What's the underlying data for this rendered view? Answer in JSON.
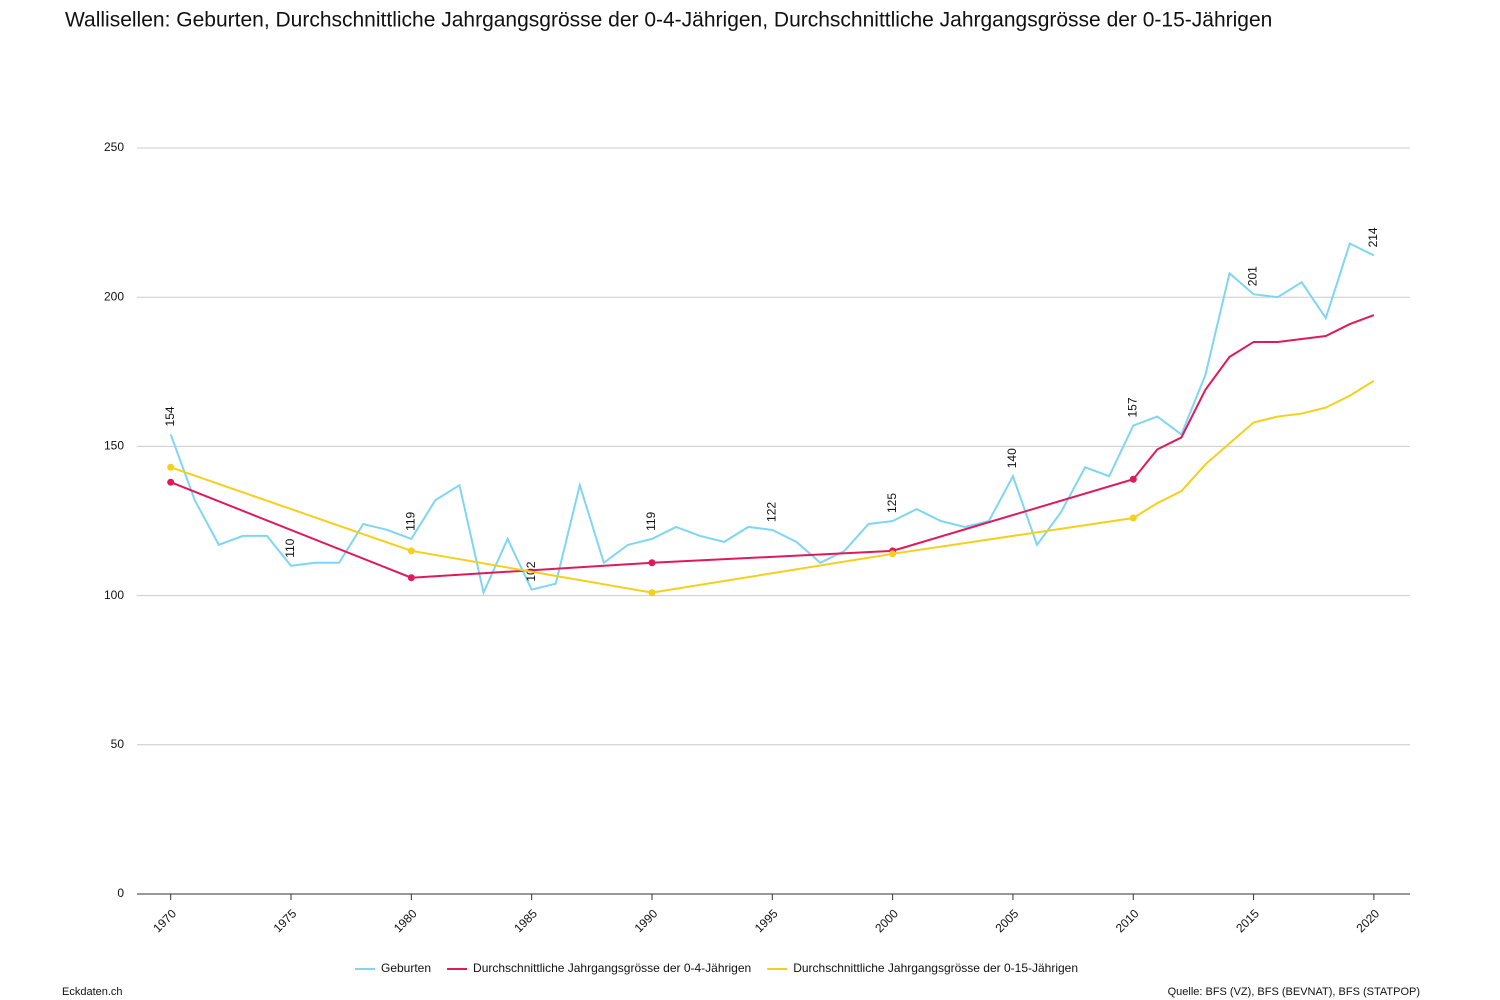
{
  "chart_data": {
    "type": "line",
    "title": "Wallisellen: Geburten, Durchschnittliche Jahrgangsgrösse der 0-4-Jährigen, Durchschnittliche Jahrgangsgrösse der 0-15-Jährigen",
    "x": [
      1970,
      1971,
      1972,
      1973,
      1974,
      1975,
      1976,
      1977,
      1978,
      1979,
      1980,
      1981,
      1982,
      1983,
      1984,
      1985,
      1986,
      1987,
      1988,
      1989,
      1990,
      1991,
      1992,
      1993,
      1994,
      1995,
      1996,
      1997,
      1998,
      1999,
      2000,
      2001,
      2002,
      2003,
      2004,
      2005,
      2006,
      2007,
      2008,
      2009,
      2010,
      2011,
      2012,
      2013,
      2014,
      2015,
      2016,
      2017,
      2018,
      2019,
      2020
    ],
    "series": [
      {
        "name": "Geburten",
        "color": "#7fd6f2",
        "values": [
          154,
          132,
          117,
          120,
          120,
          110,
          111,
          111,
          124,
          122,
          119,
          132,
          137,
          101,
          119,
          102,
          104,
          137,
          111,
          117,
          119,
          123,
          120,
          118,
          123,
          122,
          118,
          111,
          115,
          124,
          125,
          129,
          125,
          123,
          125,
          140,
          117,
          128,
          143,
          140,
          157,
          160,
          154,
          174,
          208,
          201,
          200,
          205,
          193,
          218,
          214
        ]
      },
      {
        "name": "Durchschnittliche Jahrgangsgrösse der 0-4-Jährigen",
        "color": "#e0195a",
        "x": [
          1970,
          1980,
          1990,
          2000,
          2010,
          2011,
          2012,
          2013,
          2014,
          2015,
          2016,
          2017,
          2018,
          2019,
          2020
        ],
        "values": [
          138,
          106,
          111,
          115,
          139,
          149,
          153,
          169,
          180,
          185,
          185,
          186,
          187,
          191,
          194
        ]
      },
      {
        "name": "Durchschnittliche Jahrgangsgrösse der 0-15-Jährigen",
        "color": "#f5cf1c",
        "x": [
          1970,
          1980,
          1990,
          2000,
          2010,
          2011,
          2012,
          2013,
          2014,
          2015,
          2016,
          2017,
          2018,
          2019,
          2020
        ],
        "values": [
          143,
          115,
          101,
          114,
          126,
          131,
          135,
          144,
          151,
          158,
          160,
          161,
          163,
          167,
          172
        ]
      }
    ],
    "xlim": [
      1968.6,
      2021.5
    ],
    "xticks": [
      1970,
      1975,
      1980,
      1985,
      1990,
      1995,
      2000,
      2005,
      2010,
      2015,
      2020
    ],
    "ylim": [
      0,
      250
    ],
    "yticks": [
      0,
      50,
      100,
      150,
      200,
      250
    ],
    "grid": true,
    "legend": "bottom",
    "source": "Quelle: BFS (VZ), BFS (BEVNAT), BFS (STATPOP)",
    "brand": "Eckdaten.ch"
  }
}
